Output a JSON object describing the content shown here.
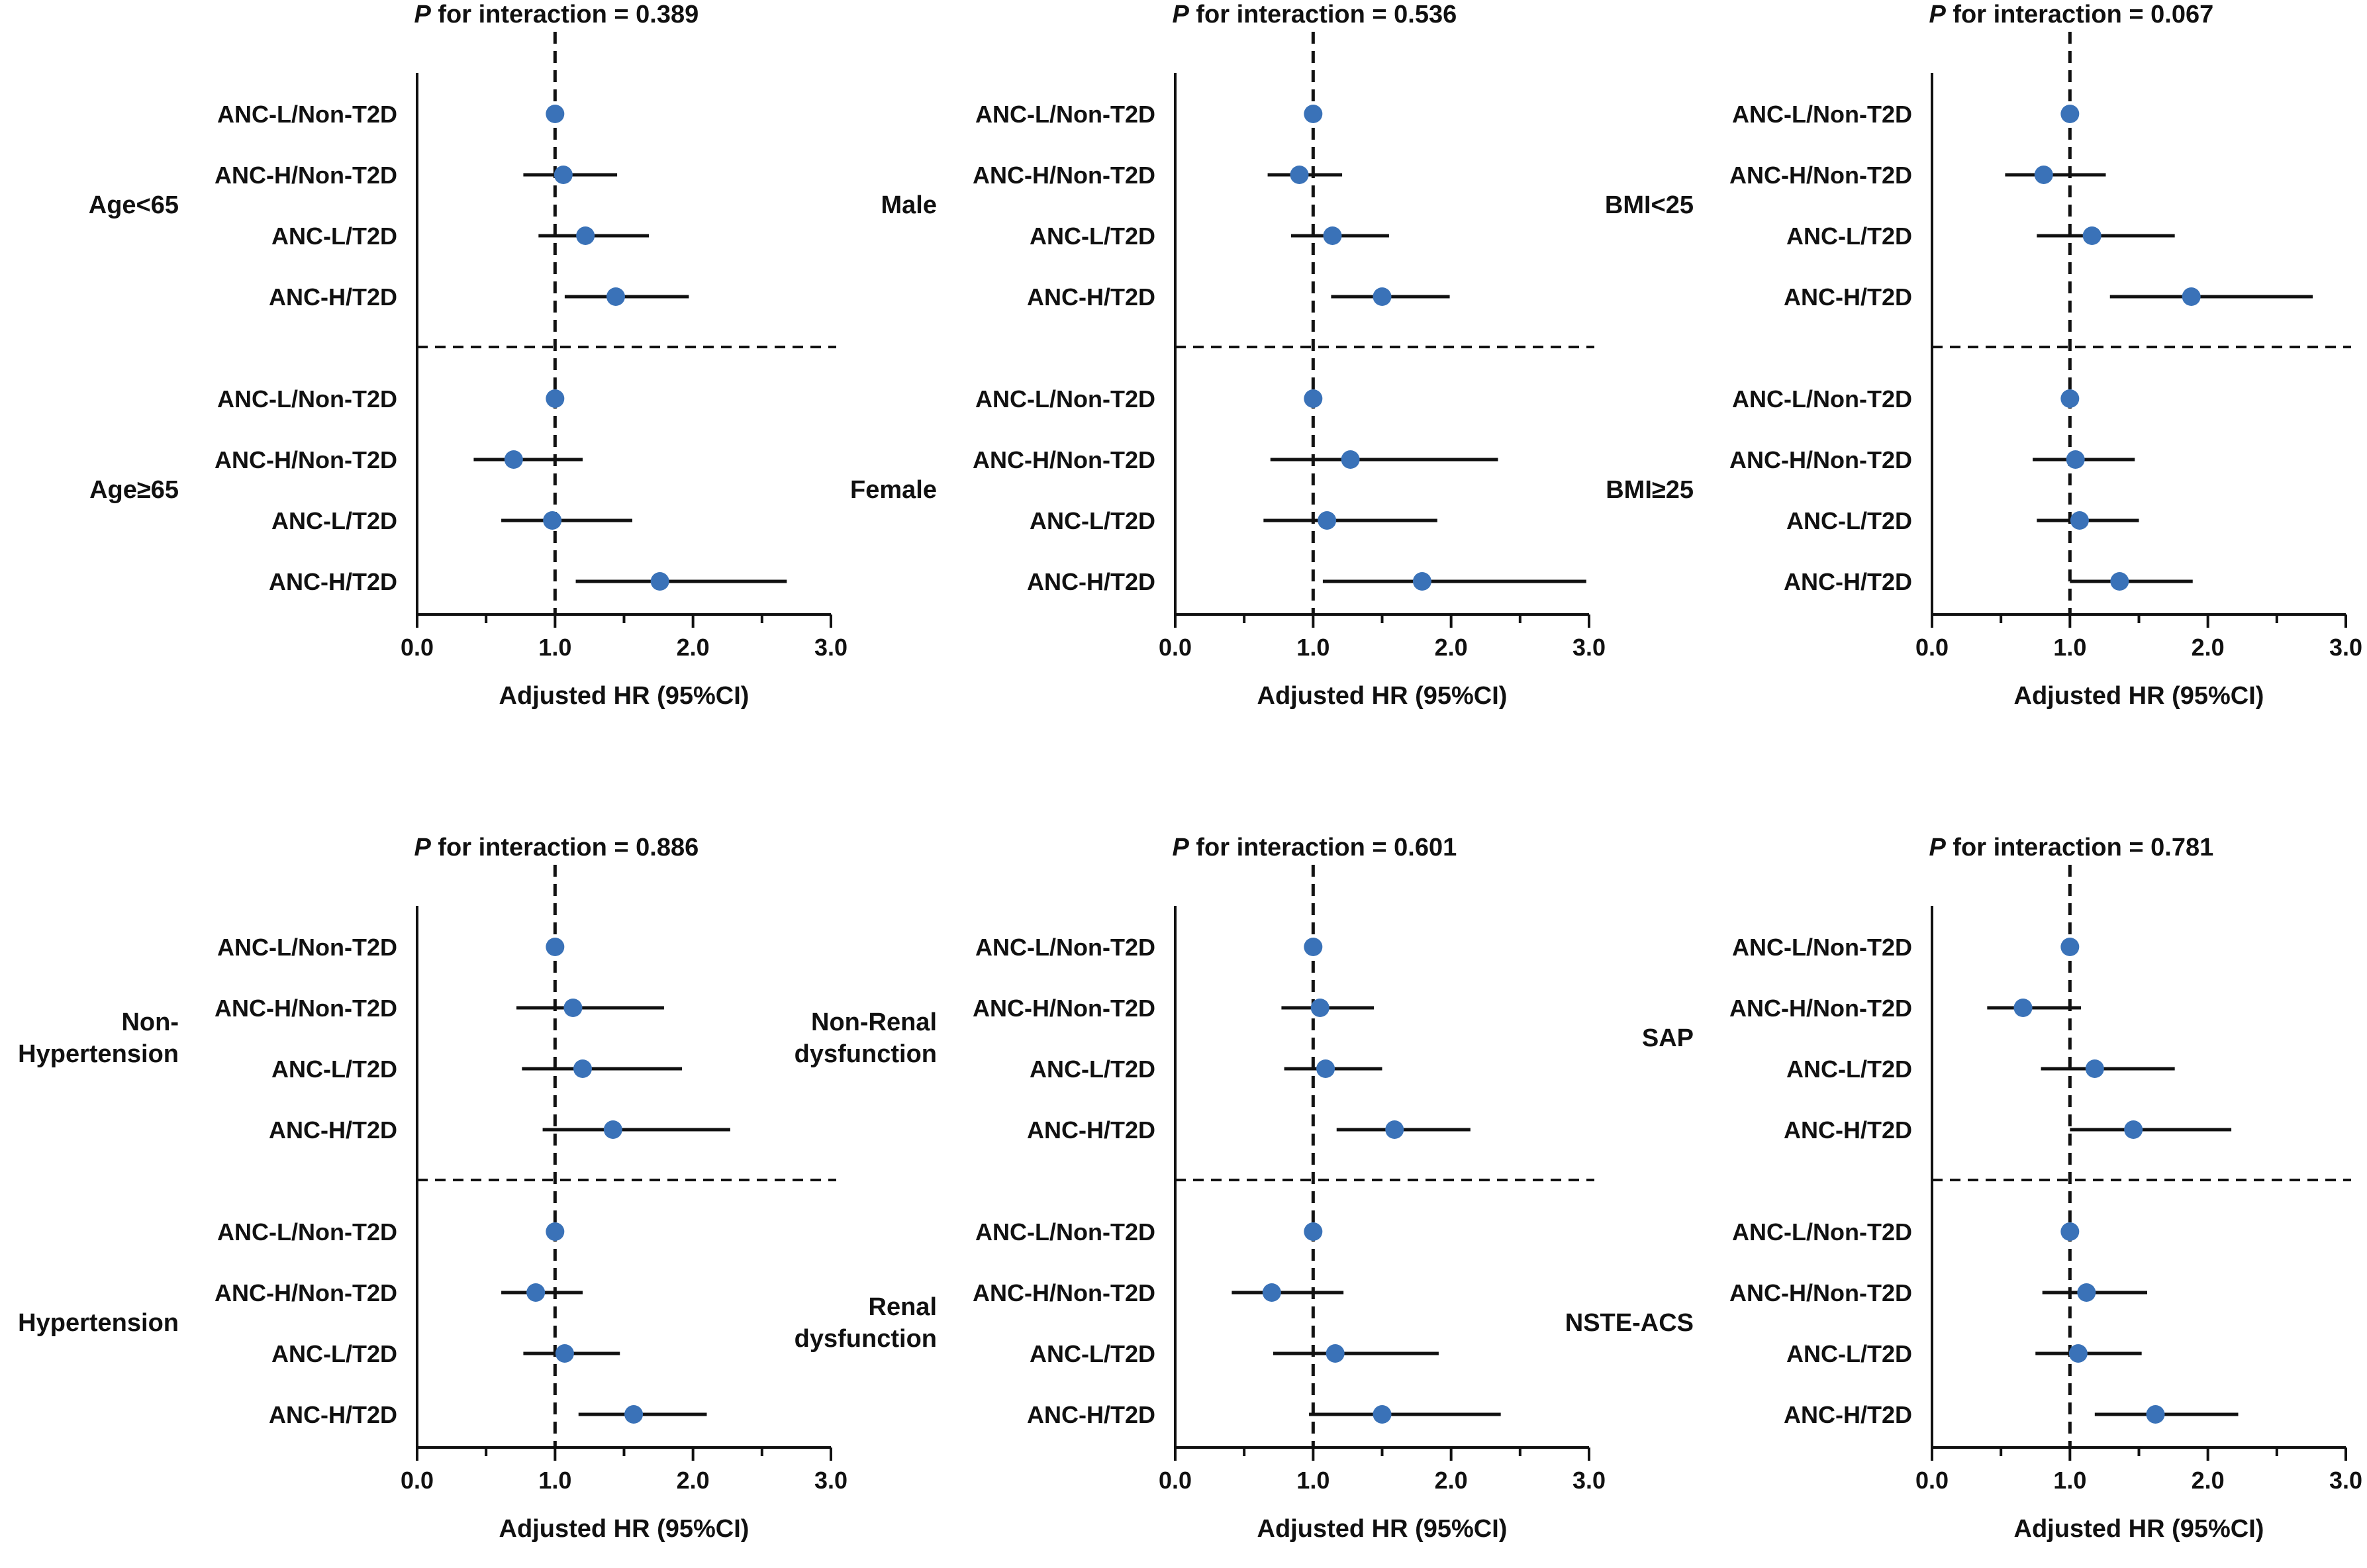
{
  "figure": {
    "point_color": "#3A72B8",
    "line_color": "#111111"
  },
  "chart_data": [
    {
      "type": "forest",
      "title_prefix": "P",
      "title_text": " for interaction = 0.389",
      "xlabel": "Adjusted HR (95%CI)",
      "xlim": [
        0,
        3
      ],
      "xticks": [
        "0.0",
        "1.0",
        "2.0",
        "3.0"
      ],
      "reference_line": 1.0,
      "groups": [
        {
          "name_lines": [
            "Age<65"
          ],
          "rows": [
            {
              "label": "ANC-L/Non-T2D",
              "hr": 1.0,
              "low": 1.0,
              "high": 1.0
            },
            {
              "label": "ANC-H/Non-T2D",
              "hr": 1.06,
              "low": 0.77,
              "high": 1.45
            },
            {
              "label": "ANC-L/T2D",
              "hr": 1.22,
              "low": 0.88,
              "high": 1.68
            },
            {
              "label": "ANC-H/T2D",
              "hr": 1.44,
              "low": 1.07,
              "high": 1.97
            }
          ]
        },
        {
          "name_lines": [
            "Age≥65"
          ],
          "rows": [
            {
              "label": "ANC-L/Non-T2D",
              "hr": 1.0,
              "low": 1.0,
              "high": 1.0
            },
            {
              "label": "ANC-H/Non-T2D",
              "hr": 0.7,
              "low": 0.41,
              "high": 1.2
            },
            {
              "label": "ANC-L/T2D",
              "hr": 0.98,
              "low": 0.61,
              "high": 1.56
            },
            {
              "label": "ANC-H/T2D",
              "hr": 1.76,
              "low": 1.15,
              "high": 2.68
            }
          ]
        }
      ]
    },
    {
      "type": "forest",
      "title_prefix": "P",
      "title_text": " for interaction = 0.536",
      "xlabel": "Adjusted HR (95%CI)",
      "xlim": [
        0,
        3
      ],
      "xticks": [
        "0.0",
        "1.0",
        "2.0",
        "3.0"
      ],
      "reference_line": 1.0,
      "groups": [
        {
          "name_lines": [
            "Male"
          ],
          "rows": [
            {
              "label": "ANC-L/Non-T2D",
              "hr": 1.0,
              "low": 1.0,
              "high": 1.0
            },
            {
              "label": "ANC-H/Non-T2D",
              "hr": 0.9,
              "low": 0.67,
              "high": 1.21
            },
            {
              "label": "ANC-L/T2D",
              "hr": 1.14,
              "low": 0.84,
              "high": 1.55
            },
            {
              "label": "ANC-H/T2D",
              "hr": 1.5,
              "low": 1.13,
              "high": 1.99
            }
          ]
        },
        {
          "name_lines": [
            "Female"
          ],
          "rows": [
            {
              "label": "ANC-L/Non-T2D",
              "hr": 1.0,
              "low": 1.0,
              "high": 1.0
            },
            {
              "label": "ANC-H/Non-T2D",
              "hr": 1.27,
              "low": 0.69,
              "high": 2.34
            },
            {
              "label": "ANC-L/T2D",
              "hr": 1.1,
              "low": 0.64,
              "high": 1.9
            },
            {
              "label": "ANC-H/T2D",
              "hr": 1.79,
              "low": 1.07,
              "high": 2.98
            }
          ]
        }
      ]
    },
    {
      "type": "forest",
      "title_prefix": "P",
      "title_text": " for interaction = 0.067",
      "xlabel": "Adjusted HR (95%CI)",
      "xlim": [
        0,
        3
      ],
      "xticks": [
        "0.0",
        "1.0",
        "2.0",
        "3.0"
      ],
      "reference_line": 1.0,
      "groups": [
        {
          "name_lines": [
            "BMI<25"
          ],
          "rows": [
            {
              "label": "ANC-L/Non-T2D",
              "hr": 1.0,
              "low": 1.0,
              "high": 1.0
            },
            {
              "label": "ANC-H/Non-T2D",
              "hr": 0.81,
              "low": 0.53,
              "high": 1.26
            },
            {
              "label": "ANC-L/T2D",
              "hr": 1.16,
              "low": 0.76,
              "high": 1.76
            },
            {
              "label": "ANC-H/T2D",
              "hr": 1.88,
              "low": 1.29,
              "high": 2.76
            }
          ]
        },
        {
          "name_lines": [
            "BMI≥25"
          ],
          "rows": [
            {
              "label": "ANC-L/Non-T2D",
              "hr": 1.0,
              "low": 1.0,
              "high": 1.0
            },
            {
              "label": "ANC-H/Non-T2D",
              "hr": 1.04,
              "low": 0.73,
              "high": 1.47
            },
            {
              "label": "ANC-L/T2D",
              "hr": 1.07,
              "low": 0.76,
              "high": 1.5
            },
            {
              "label": "ANC-H/T2D",
              "hr": 1.36,
              "low": 1.0,
              "high": 1.89
            }
          ]
        }
      ]
    },
    {
      "type": "forest",
      "title_prefix": "P",
      "title_text": " for interaction = 0.886",
      "xlabel": "Adjusted HR (95%CI)",
      "xlim": [
        0,
        3
      ],
      "xticks": [
        "0.0",
        "1.0",
        "2.0",
        "3.0"
      ],
      "reference_line": 1.0,
      "groups": [
        {
          "name_lines": [
            "Non-",
            "Hypertension"
          ],
          "rows": [
            {
              "label": "ANC-L/Non-T2D",
              "hr": 1.0,
              "low": 1.0,
              "high": 1.0
            },
            {
              "label": "ANC-H/Non-T2D",
              "hr": 1.13,
              "low": 0.72,
              "high": 1.79
            },
            {
              "label": "ANC-L/T2D",
              "hr": 1.2,
              "low": 0.76,
              "high": 1.92
            },
            {
              "label": "ANC-H/T2D",
              "hr": 1.42,
              "low": 0.91,
              "high": 2.27
            }
          ]
        },
        {
          "name_lines": [
            "Hypertension"
          ],
          "rows": [
            {
              "label": "ANC-L/Non-T2D",
              "hr": 1.0,
              "low": 1.0,
              "high": 1.0
            },
            {
              "label": "ANC-H/Non-T2D",
              "hr": 0.86,
              "low": 0.61,
              "high": 1.2
            },
            {
              "label": "ANC-L/T2D",
              "hr": 1.07,
              "low": 0.77,
              "high": 1.47
            },
            {
              "label": "ANC-H/T2D",
              "hr": 1.57,
              "low": 1.17,
              "high": 2.1
            }
          ]
        }
      ]
    },
    {
      "type": "forest",
      "title_prefix": "P",
      "title_text": " for interaction = 0.601",
      "xlabel": "Adjusted HR (95%CI)",
      "xlim": [
        0,
        3
      ],
      "xticks": [
        "0.0",
        "1.0",
        "2.0",
        "3.0"
      ],
      "reference_line": 1.0,
      "groups": [
        {
          "name_lines": [
            "Non-Renal",
            "dysfunction"
          ],
          "rows": [
            {
              "label": "ANC-L/Non-T2D",
              "hr": 1.0,
              "low": 1.0,
              "high": 1.0
            },
            {
              "label": "ANC-H/Non-T2D",
              "hr": 1.05,
              "low": 0.77,
              "high": 1.44
            },
            {
              "label": "ANC-L/T2D",
              "hr": 1.09,
              "low": 0.79,
              "high": 1.5
            },
            {
              "label": "ANC-H/T2D",
              "hr": 1.59,
              "low": 1.17,
              "high": 2.14
            }
          ]
        },
        {
          "name_lines": [
            "Renal",
            "dysfunction"
          ],
          "rows": [
            {
              "label": "ANC-L/Non-T2D",
              "hr": 1.0,
              "low": 1.0,
              "high": 1.0
            },
            {
              "label": "ANC-H/Non-T2D",
              "hr": 0.7,
              "low": 0.41,
              "high": 1.22
            },
            {
              "label": "ANC-L/T2D",
              "hr": 1.16,
              "low": 0.71,
              "high": 1.91
            },
            {
              "label": "ANC-H/T2D",
              "hr": 1.5,
              "low": 0.97,
              "high": 2.36
            }
          ]
        }
      ]
    },
    {
      "type": "forest",
      "title_prefix": "P",
      "title_text": " for interaction = 0.781",
      "xlabel": "Adjusted HR (95%CI)",
      "xlim": [
        0,
        3
      ],
      "xticks": [
        "0.0",
        "1.0",
        "2.0",
        "3.0"
      ],
      "reference_line": 1.0,
      "groups": [
        {
          "name_lines": [
            "SAP"
          ],
          "rows": [
            {
              "label": "ANC-L/Non-T2D",
              "hr": 1.0,
              "low": 1.0,
              "high": 1.0
            },
            {
              "label": "ANC-H/Non-T2D",
              "hr": 0.66,
              "low": 0.4,
              "high": 1.08
            },
            {
              "label": "ANC-L/T2D",
              "hr": 1.18,
              "low": 0.79,
              "high": 1.76
            },
            {
              "label": "ANC-H/T2D",
              "hr": 1.46,
              "low": 1.0,
              "high": 2.17
            }
          ]
        },
        {
          "name_lines": [
            "NSTE-ACS"
          ],
          "rows": [
            {
              "label": "ANC-L/Non-T2D",
              "hr": 1.0,
              "low": 1.0,
              "high": 1.0
            },
            {
              "label": "ANC-H/Non-T2D",
              "hr": 1.12,
              "low": 0.8,
              "high": 1.56
            },
            {
              "label": "ANC-L/T2D",
              "hr": 1.06,
              "low": 0.75,
              "high": 1.52
            },
            {
              "label": "ANC-H/T2D",
              "hr": 1.62,
              "low": 1.18,
              "high": 2.22
            }
          ]
        }
      ]
    }
  ]
}
